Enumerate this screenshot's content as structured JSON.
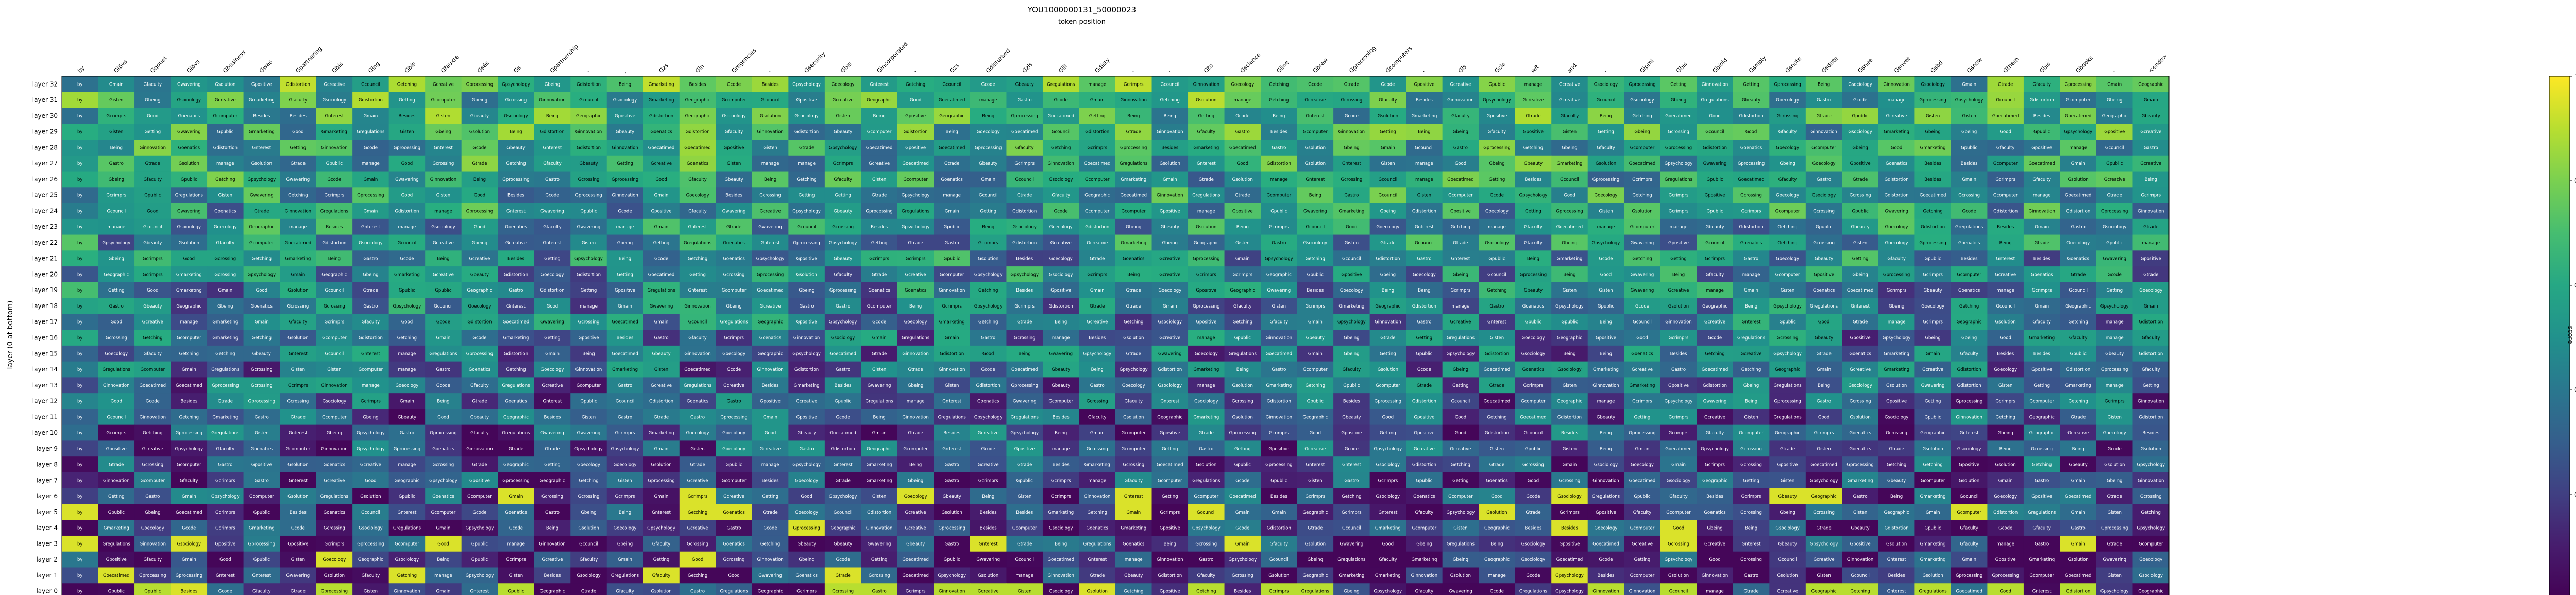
{
  "chart_data": {
    "type": "heatmap",
    "title": "YOU1000000131_50000023",
    "xlabel": "token position",
    "ylabel": "layer (0 at bottom)",
    "colorbar_label": "score",
    "colorbar_ticks": [
      "0.2",
      "0.4",
      "0.6",
      "0.8",
      "1.0"
    ],
    "clim": [
      0.0,
      1.0
    ],
    "colormap": "viridis",
    "tokens": [
      "by",
      "Glövs",
      "Gqouet",
      "Glövs",
      "Gbusiness",
      "Gwas",
      "Gpartnering",
      "Gbis",
      "Glng",
      "Gbis",
      "Gfauxte",
      "Gsés",
      "Gs",
      "Gpartnership",
      "-",
      ",",
      "Gzs",
      "Gin",
      "Gregencies",
      "-",
      "Gsecurity",
      "Gbis",
      "Gincorporated",
      "-",
      "Gzs",
      "Gdisturbed",
      "Gzis",
      "Gill",
      "Gdisty",
      "-",
      "-",
      "Gto",
      "Gscience",
      "Gline",
      "Gbrew",
      "Gprocessing",
      "Gcomputers",
      "-",
      "Gis",
      "Gcle",
      "wit",
      "and",
      "-",
      "Gipmi",
      "Gbis",
      "Gbiold",
      "Gsmply",
      "Gsnote",
      "Gsdnte",
      "Gsnee",
      "Gsnvet",
      "Gsbd",
      "Gsnow",
      "Gthem",
      "Gbis",
      "Gbooks",
      "-",
      "<endo>"
    ],
    "layers": [
      "layer 32",
      "layer 31",
      "layer 30",
      "layer 29",
      "layer 28",
      "layer 27",
      "layer 26",
      "layer 25",
      "layer 24",
      "layer 23",
      "layer 22",
      "layer 21",
      "layer 20",
      "layer 19",
      "layer 18",
      "layer 17",
      "layer 16",
      "layer 15",
      "layer 14",
      "layer 13",
      "layer 12",
      "layer 11",
      "layer 10",
      "layer 9",
      "layer 8",
      "layer 7",
      "layer 6",
      "layer 5",
      "layer 4",
      "layer 3",
      "layer 2",
      "layer 1",
      "layer 0"
    ],
    "vocab": [
      "Being",
      "Gmarketing",
      "Gcomputer",
      "Good",
      "Gsociology",
      "Goenatics",
      "Gbeing",
      "Besides",
      "manage",
      "Getting",
      "Goecology",
      "Gastro",
      "Gsolution",
      "Goecatimed",
      "Gisten",
      "Gcrimprs",
      "Getching",
      "Gwavering",
      "Ginnovation",
      "Gpsychology",
      "Gfaculty",
      "Gdistortion",
      "Gnterest",
      "Geographic",
      "Gregulations",
      "Gbeauty",
      "Gprocessing",
      "Gcreative",
      "Gpositive",
      "Gcrossing",
      "Gcouncil",
      "Gtrade",
      "Gpublic",
      "Gcode",
      "Gmain"
    ],
    "notes": "Cell text labels and cell colours estimated; dense heatmap of decoded tokens per layer and token position."
  }
}
